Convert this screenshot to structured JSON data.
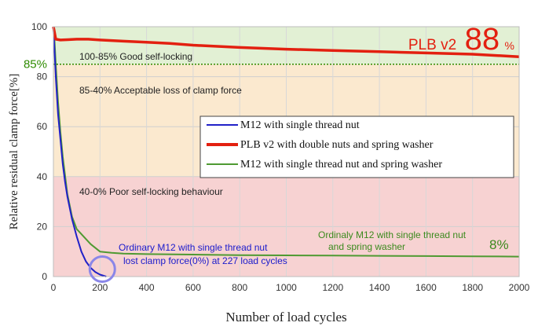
{
  "chart_data": {
    "type": "line",
    "xlabel": "Number of load cycles",
    "ylabel": "Relative residual clamp force[%]",
    "xlim": [
      0,
      2000
    ],
    "ylim": [
      0,
      100
    ],
    "x_ticks": [
      "0",
      "200",
      "400",
      "600",
      "800",
      "1000",
      "1200",
      "1400",
      "1600",
      "1800",
      "2000"
    ],
    "y_ticks": [
      "0",
      "20",
      "40",
      "60",
      "80",
      "100"
    ],
    "zones": [
      {
        "label": "100-85% Good self-locking",
        "from": 85,
        "to": 100,
        "color": "#e2f0d4"
      },
      {
        "label": "85-40% Acceptable loss of clamp force",
        "from": 40,
        "to": 85,
        "color": "#fbe9cf"
      },
      {
        "label": "40-0% Poor self-locking behaviour",
        "from": 0,
        "to": 40,
        "color": "#f7d2d2"
      }
    ],
    "reference_line": {
      "value": 85,
      "label": "85%",
      "color": "#2e8b00"
    },
    "series": [
      {
        "name": "M12 with single thread nut",
        "color": "#2121c8",
        "x": [
          0,
          5,
          10,
          20,
          30,
          40,
          50,
          60,
          80,
          100,
          120,
          140,
          160,
          180,
          200,
          227
        ],
        "y": [
          100,
          90,
          80,
          65,
          55,
          45,
          38,
          32,
          23,
          16,
          10,
          6,
          3.5,
          1.8,
          0.8,
          0
        ]
      },
      {
        "name": "PLB v2 with double nuts and spring washer",
        "color": "#e32010",
        "x": [
          0,
          10,
          30,
          60,
          100,
          150,
          200,
          300,
          400,
          500,
          600,
          800,
          1000,
          1200,
          1400,
          1600,
          1800,
          1900,
          2000
        ],
        "y": [
          100,
          95,
          94.7,
          94.8,
          95,
          95,
          94.7,
          94.2,
          93.8,
          93.3,
          92.6,
          91.7,
          91,
          90.5,
          90,
          89.5,
          89,
          88.5,
          88
        ]
      },
      {
        "name": "M12 with single thread nut and spring washer",
        "color": "#4f9a32",
        "x": [
          0,
          5,
          10,
          20,
          30,
          40,
          60,
          80,
          100,
          130,
          160,
          200,
          250,
          300,
          400,
          600,
          800,
          1000,
          1200,
          1400,
          1600,
          1800,
          2000
        ],
        "y": [
          100,
          94,
          85,
          70,
          58,
          48,
          33,
          24,
          19,
          16,
          13,
          10,
          9.5,
          9.2,
          9,
          8.8,
          8.6,
          8.5,
          8.4,
          8.3,
          8.2,
          8.1,
          8
        ]
      }
    ],
    "annotations": {
      "plb_label": "PLB v2",
      "plb_value": "88",
      "plb_unit": "%",
      "washer_label_line1": "Ordinaly M12 with single thread nut",
      "washer_label_line2": "and spring washer",
      "washer_value": "8%",
      "single_label_line1": "Ordinary M12 with single thread nut",
      "single_label_line2": "lost clamp force(0%) at 227 load cycles",
      "single_circle_x": 210,
      "single_circle_y": 3
    },
    "legend_position": "center-right"
  }
}
